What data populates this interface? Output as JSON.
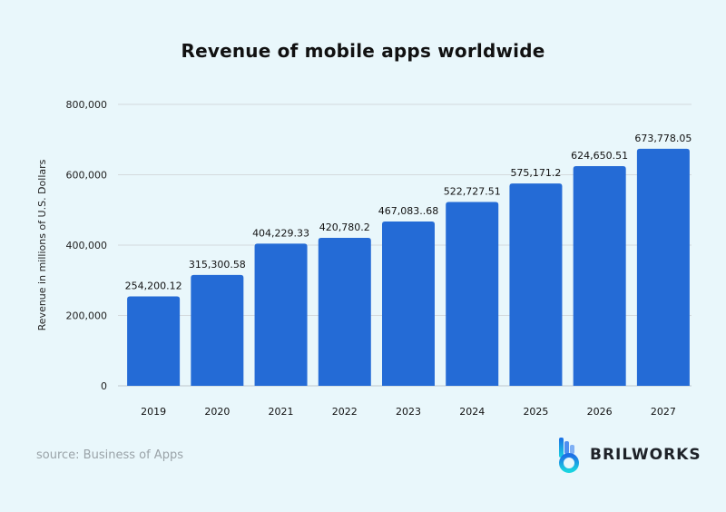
{
  "chart_data": {
    "type": "bar",
    "title": "Revenue of mobile apps worldwide",
    "xlabel": "",
    "ylabel": "Revenue in millions of U.S. Dollars",
    "categories": [
      "2019",
      "2020",
      "2021",
      "2022",
      "2023",
      "2024",
      "2025",
      "2026",
      "2027"
    ],
    "values": [
      254200.12,
      315300.58,
      404229.33,
      420780.2,
      467083.68,
      522727.51,
      575171.2,
      624650.51,
      673778.05
    ],
    "data_labels": [
      "254,200.12",
      "315,300.58",
      "404,229.33",
      "420,780.2",
      "467,083..68",
      "522,727.51",
      "575,171.2",
      "624,650.51",
      "673,778.05"
    ],
    "yticks": [
      0,
      200000,
      400000,
      600000,
      800000
    ],
    "ytick_labels": [
      "0",
      "200,000",
      "400,000",
      "600,000",
      "800,000"
    ],
    "ylim": [
      0,
      800000
    ],
    "grid": true,
    "bar_color": "#246bd6"
  },
  "source": "source: Business of Apps",
  "brand": "BRILWORKS"
}
